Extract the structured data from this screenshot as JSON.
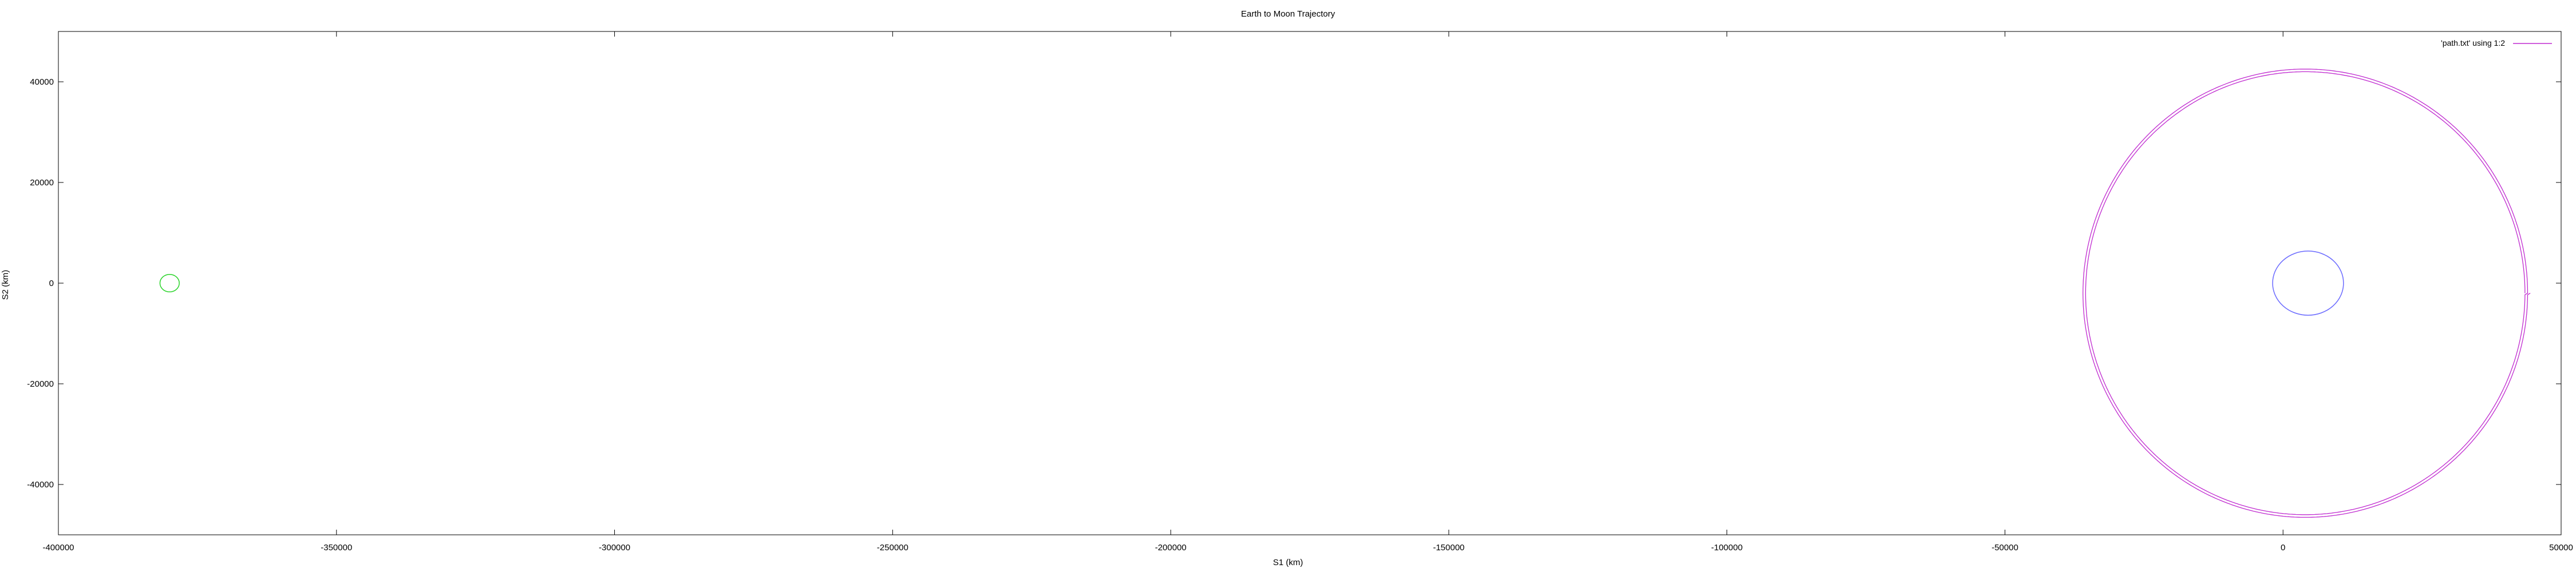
{
  "chart_data": {
    "type": "scatter",
    "title": "Earth to Moon Trajectory",
    "xlabel": "S1 (km)",
    "ylabel": "S2 (km)",
    "xlim": [
      -400000,
      50000
    ],
    "ylim": [
      -50000,
      50000
    ],
    "x_ticks": [
      -400000,
      -350000,
      -300000,
      -250000,
      -200000,
      -150000,
      -100000,
      -50000,
      0,
      50000
    ],
    "y_ticks": [
      -40000,
      -20000,
      0,
      20000,
      40000
    ],
    "x_tick_labels": [
      "-400000",
      "-350000",
      "-300000",
      "-250000",
      "-200000",
      "-150000",
      "-100000",
      "-50000",
      "0",
      "50000"
    ],
    "y_tick_labels": [
      "-40000",
      "-20000",
      "0",
      "20000",
      "40000"
    ],
    "grid": false,
    "legend": {
      "position": "top-right",
      "entries": [
        "'path.txt' using 1:2"
      ]
    },
    "series": [
      {
        "name": "'path.txt' using 1:2",
        "color": "#c02ad0",
        "kind": "orbit",
        "center": [
          4000,
          -2000
        ],
        "radii": [
          39500,
          44000
        ],
        "loops": 2
      }
    ],
    "shapes": [
      {
        "kind": "circle",
        "center": [
          4500,
          0
        ],
        "radius": 6371,
        "color": "#6b6bff"
      },
      {
        "kind": "circle",
        "center": [
          -380000,
          0
        ],
        "radius": 1737,
        "color": "#2ad42a"
      }
    ]
  }
}
